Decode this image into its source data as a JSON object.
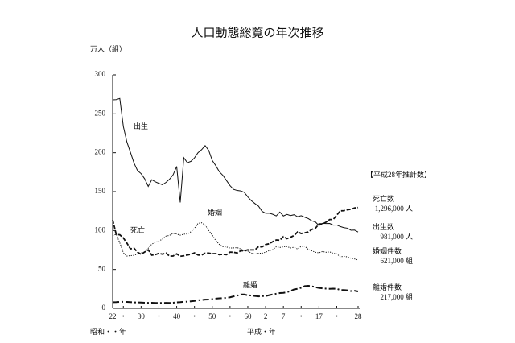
{
  "chart_data": {
    "type": "line",
    "title": "人口動態総覧の年次推移",
    "y_label": "万人（組）",
    "x_label_left": "昭和・・年",
    "x_label_right": "平成・年",
    "x": [
      1947,
      1948,
      1949,
      1950,
      1951,
      1952,
      1953,
      1954,
      1955,
      1956,
      1957,
      1958,
      1959,
      1960,
      1961,
      1962,
      1963,
      1964,
      1965,
      1966,
      1967,
      1968,
      1969,
      1970,
      1971,
      1972,
      1973,
      1974,
      1975,
      1976,
      1977,
      1978,
      1979,
      1980,
      1981,
      1982,
      1983,
      1984,
      1985,
      1986,
      1987,
      1988,
      1989,
      1990,
      1991,
      1992,
      1993,
      1994,
      1995,
      1996,
      1997,
      1998,
      1999,
      2000,
      2001,
      2002,
      2003,
      2004,
      2005,
      2006,
      2007,
      2008,
      2009,
      2010,
      2011,
      2012,
      2013,
      2014,
      2015,
      2016
    ],
    "series": [
      {
        "name": "出生",
        "color": "#111111",
        "dash": "solid",
        "width": 1,
        "values": [
          267.9,
          268.2,
          269.7,
          233.8,
          213.8,
          200.5,
          186.8,
          177.0,
          173.1,
          166.5,
          156.7,
          165.3,
          162.6,
          160.6,
          158.9,
          161.9,
          166.0,
          171.7,
          182.4,
          136.1,
          193.5,
          187.2,
          188.9,
          193.4,
          200.1,
          203.9,
          209.2,
          203.0,
          190.1,
          183.3,
          175.5,
          170.9,
          164.3,
          157.7,
          152.9,
          151.5,
          150.9,
          149.0,
          143.2,
          138.3,
          134.7,
          131.4,
          124.7,
          122.2,
          122.3,
          120.9,
          118.8,
          123.8,
          118.7,
          120.7,
          119.2,
          120.3,
          117.8,
          119.1,
          117.1,
          115.4,
          112.4,
          111.1,
          106.3,
          109.3,
          109.0,
          109.1,
          107.0,
          107.1,
          105.1,
          103.7,
          103.0,
          100.4,
          100.6,
          98.1
        ]
      },
      {
        "name": "死亡",
        "color": "#111111",
        "dash": "dashed",
        "width": 1.8,
        "values": [
          113.8,
          95.1,
          94.5,
          90.5,
          83.9,
          76.5,
          77.3,
          72.1,
          69.4,
          72.4,
          75.2,
          68.4,
          69.0,
          70.7,
          69.6,
          71.0,
          67.1,
          67.3,
          70.0,
          67.0,
          67.5,
          68.6,
          69.4,
          71.3,
          68.5,
          68.4,
          70.9,
          71.0,
          70.2,
          70.3,
          69.0,
          69.5,
          69.0,
          72.3,
          72.0,
          71.2,
          74.0,
          74.0,
          75.2,
          75.1,
          75.1,
          79.3,
          78.9,
          82.0,
          83.0,
          85.7,
          87.9,
          87.6,
          92.2,
          89.6,
          91.3,
          93.6,
          98.2,
          96.2,
          97.0,
          98.2,
          101.5,
          102.9,
          108.4,
          108.4,
          110.8,
          114.2,
          114.2,
          119.7,
          125.3,
          125.6,
          126.8,
          127.3,
          129.0,
          129.6
        ]
      },
      {
        "name": "婚姻",
        "color": "#111111",
        "dash": "dotted",
        "width": 1,
        "values": [
          93.4,
          95.3,
          84.3,
          71.5,
          67.2,
          67.7,
          68.2,
          69.8,
          71.5,
          71.6,
          77.3,
          82.6,
          84.7,
          86.6,
          89.0,
          92.9,
          93.8,
          96.4,
          95.5,
          94.0,
          95.3,
          95.6,
          98.4,
          102.9,
          109.2,
          110.0,
          107.2,
          100.0,
          94.2,
          87.1,
          82.1,
          79.3,
          78.9,
          77.5,
          77.7,
          78.1,
          76.3,
          73.9,
          73.6,
          71.0,
          69.6,
          70.8,
          70.8,
          72.2,
          74.2,
          75.4,
          79.2,
          78.2,
          79.2,
          79.5,
          77.6,
          78.5,
          76.2,
          79.8,
          80.0,
          75.7,
          74.0,
          72.0,
          71.4,
          73.1,
          72.0,
          72.6,
          70.8,
          70.0,
          66.2,
          66.9,
          66.1,
          64.4,
          63.5,
          62.1
        ]
      },
      {
        "name": "離婚",
        "color": "#111111",
        "dash": "dashdot",
        "width": 2,
        "values": [
          7.9,
          8.0,
          8.3,
          8.4,
          8.3,
          8.0,
          7.6,
          7.6,
          7.5,
          7.3,
          7.1,
          7.2,
          7.0,
          6.9,
          7.0,
          7.1,
          7.0,
          7.3,
          7.7,
          8.0,
          8.4,
          8.7,
          9.1,
          9.6,
          10.4,
          10.8,
          11.2,
          11.4,
          11.9,
          12.5,
          12.9,
          13.2,
          13.5,
          14.2,
          15.4,
          16.4,
          17.9,
          17.9,
          16.7,
          16.6,
          15.9,
          15.4,
          15.8,
          15.8,
          16.9,
          17.9,
          18.8,
          19.6,
          19.9,
          20.7,
          22.3,
          24.3,
          25.1,
          26.4,
          28.6,
          29.0,
          28.4,
          27.1,
          26.2,
          25.7,
          25.4,
          25.1,
          25.3,
          25.1,
          23.6,
          23.5,
          23.1,
          22.2,
          22.6,
          21.7
        ]
      }
    ],
    "xlim": [
      1947,
      2016
    ],
    "xticks": [
      {
        "value": 1947,
        "label": "22"
      },
      {
        "value": 1950,
        "label": "・"
      },
      {
        "value": 1955,
        "label": "30"
      },
      {
        "value": 1960,
        "label": "・"
      },
      {
        "value": 1965,
        "label": "40"
      },
      {
        "value": 1970,
        "label": "・"
      },
      {
        "value": 1975,
        "label": "50"
      },
      {
        "value": 1980,
        "label": "・"
      },
      {
        "value": 1985,
        "label": "60"
      },
      {
        "value": 1990,
        "label": "2"
      },
      {
        "value": 1995,
        "label": "7"
      },
      {
        "value": 2000,
        "label": "・"
      },
      {
        "value": 2005,
        "label": "17"
      },
      {
        "value": 2010,
        "label": "・"
      },
      {
        "value": 2016,
        "label": "28"
      }
    ],
    "ylim": [
      0,
      300
    ],
    "yticks": [
      0,
      50,
      100,
      150,
      200,
      250,
      300
    ],
    "grid": false,
    "estimates": {
      "title": "【平成28年推計数】",
      "items": [
        {
          "label": "死亡数",
          "amount": "1,296,000 人"
        },
        {
          "label": "出生数",
          "amount": "981,000 人"
        },
        {
          "label": "婚姻件数",
          "amount": "621,000 組"
        },
        {
          "label": "離婚件数",
          "amount": "217,000 組"
        }
      ]
    }
  }
}
